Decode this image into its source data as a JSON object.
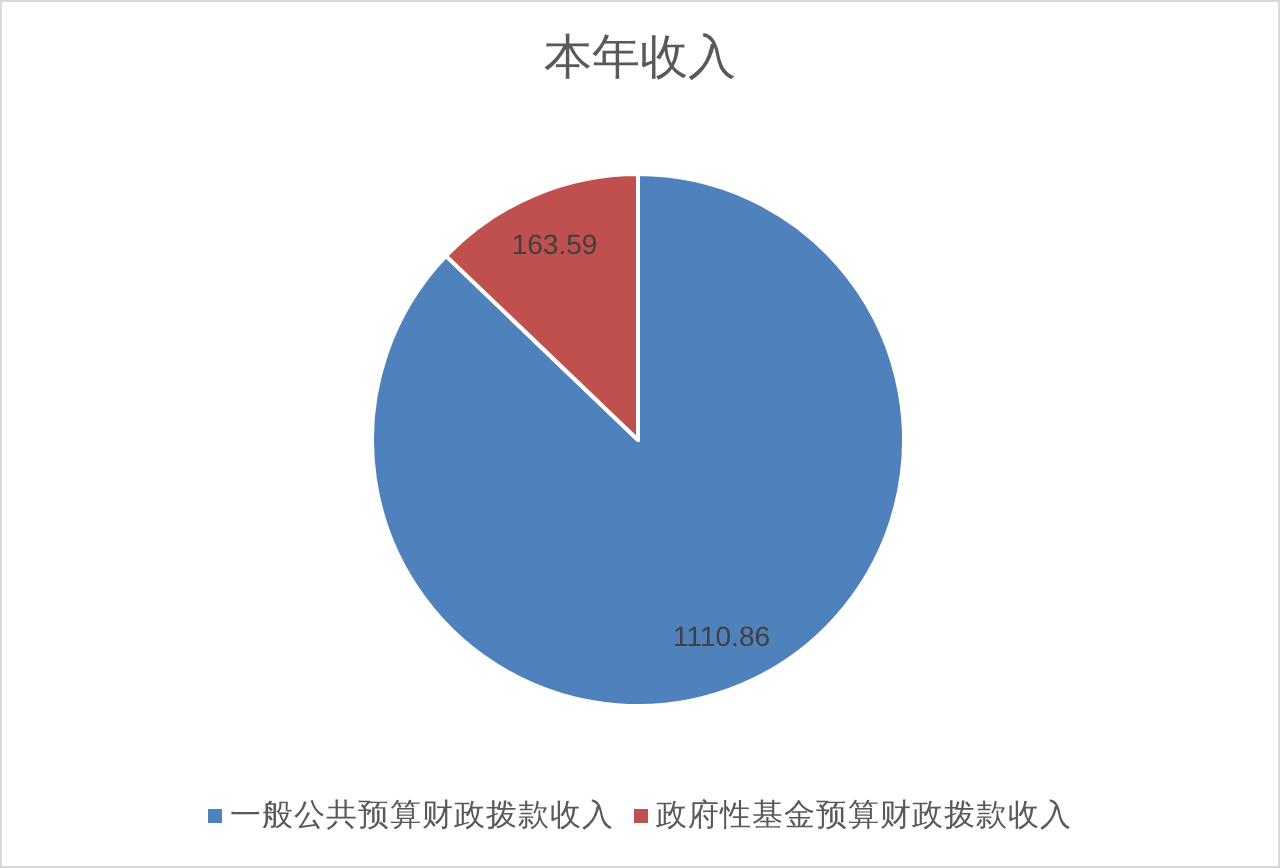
{
  "chart_data": {
    "type": "pie",
    "title": "本年收入",
    "categories": [
      "一般公共预算财政拨款收入",
      "政府性基金预算财政拨款收入"
    ],
    "values": [
      1110.86,
      163.59
    ],
    "colors": [
      "#4f81bd",
      "#c0504d"
    ],
    "data_labels": true,
    "legend": "bottom"
  }
}
